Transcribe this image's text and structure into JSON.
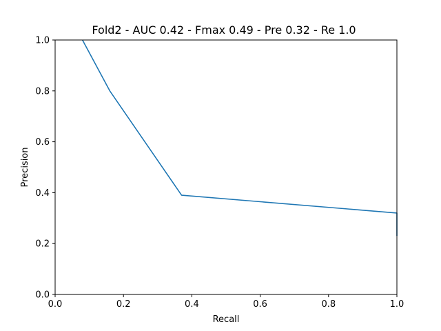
{
  "chart_data": {
    "type": "line",
    "title": "Fold2 - AUC 0.42 - Fmax 0.49 - Pre 0.32 - Re 1.0",
    "xlabel": "Recall",
    "ylabel": "Precision",
    "xlim": [
      0.0,
      1.0
    ],
    "ylim": [
      0.0,
      1.0
    ],
    "xticks": [
      "0.0",
      "0.2",
      "0.4",
      "0.6",
      "0.8",
      "1.0"
    ],
    "yticks": [
      "0.0",
      "0.2",
      "0.4",
      "0.6",
      "0.8",
      "1.0"
    ],
    "grid": false,
    "series": [
      {
        "color": "#1f77b4",
        "x": [
          0.08,
          0.16,
          0.37,
          1.0,
          1.0
        ],
        "y": [
          1.0,
          0.8,
          0.39,
          0.32,
          0.23
        ]
      }
    ]
  }
}
